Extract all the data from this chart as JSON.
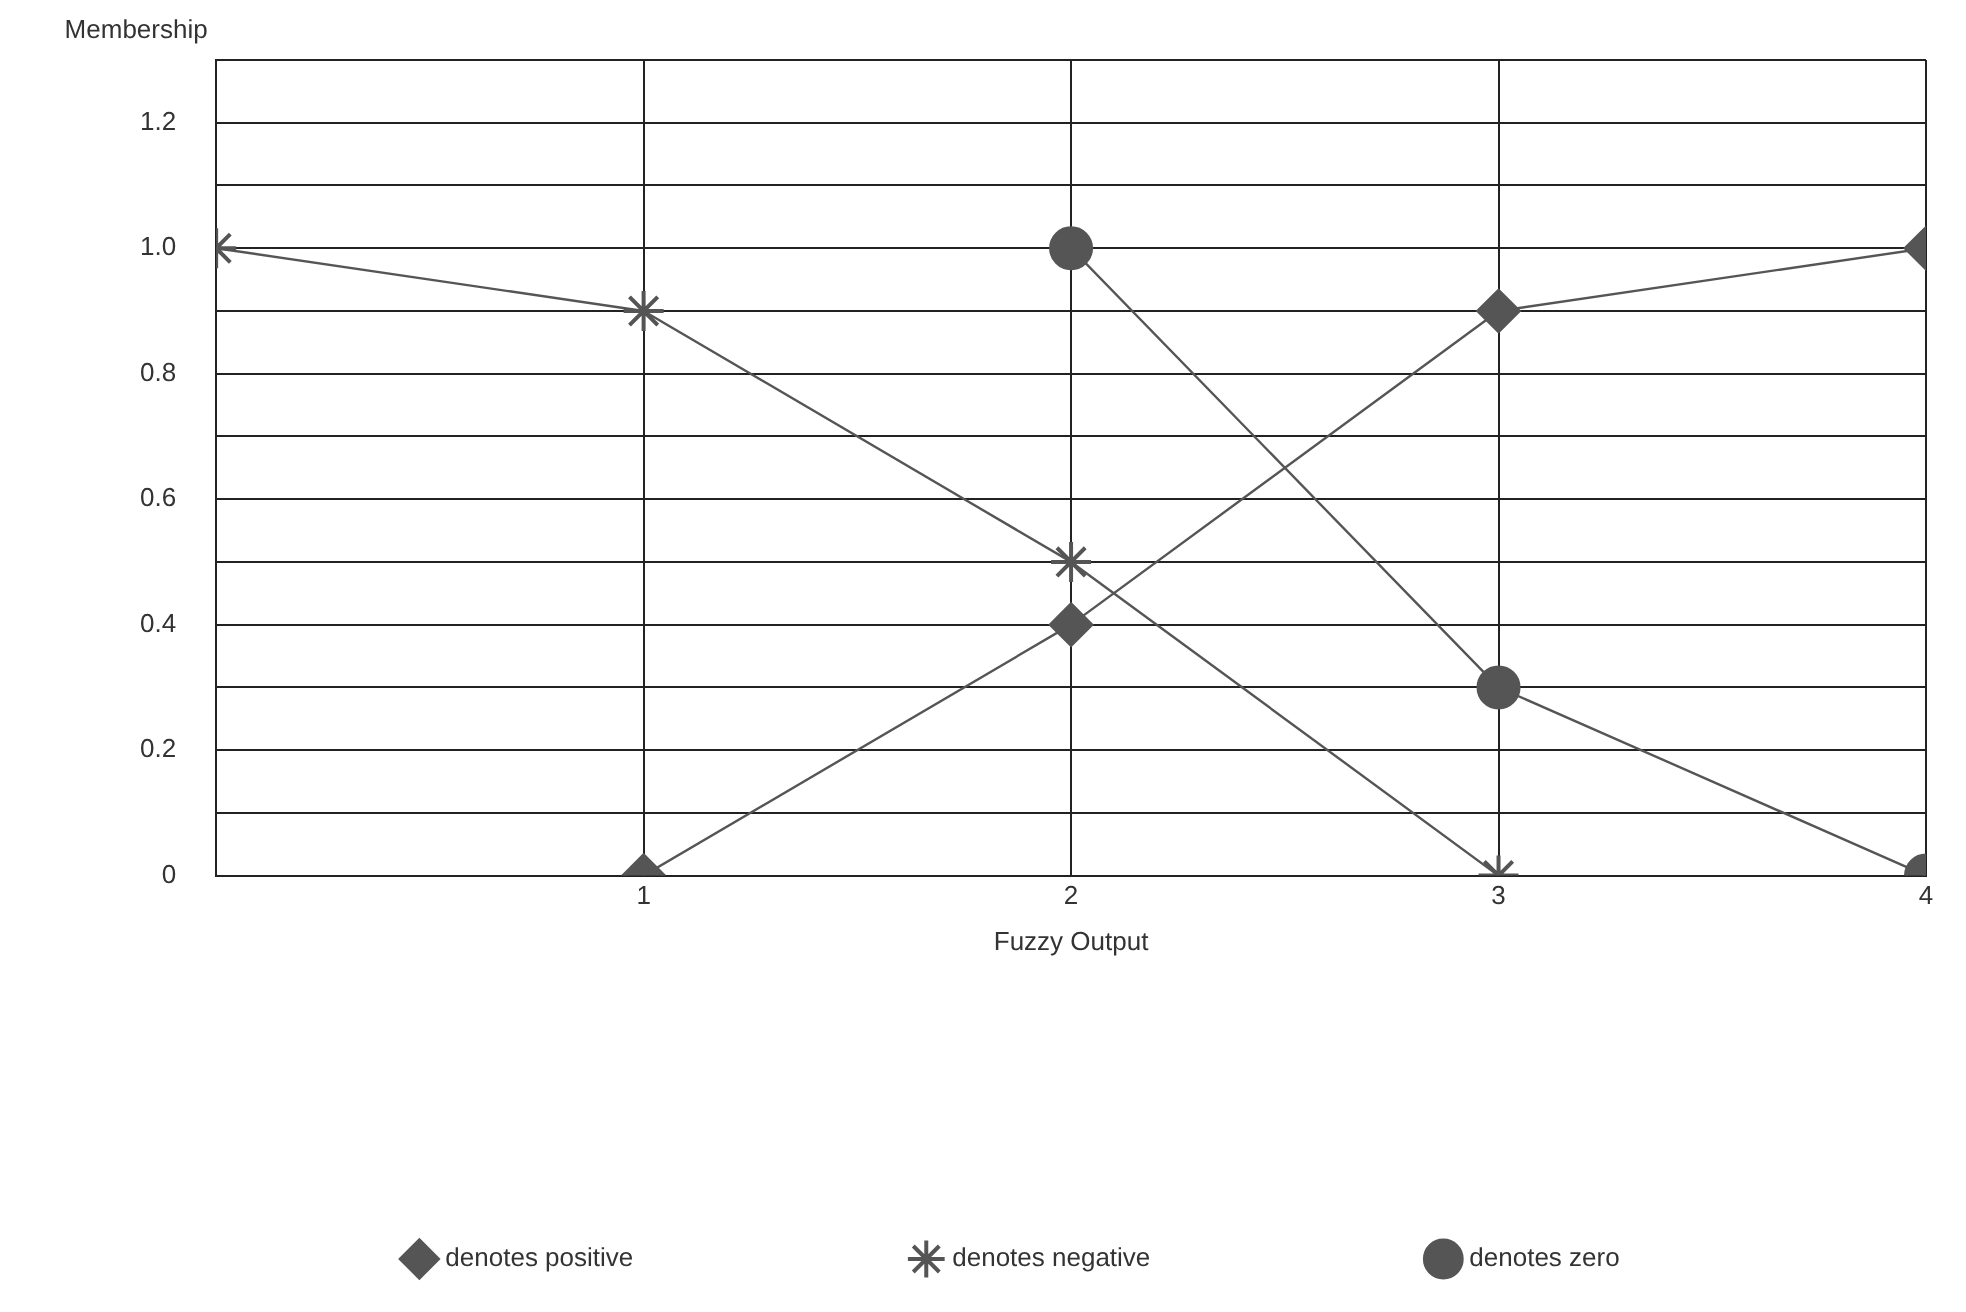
{
  "chart_data": {
    "type": "line",
    "ylabel": "Membership",
    "xlabel": "Fuzzy Output",
    "xlim": [
      0,
      4
    ],
    "xticks": [
      {
        "value": 0,
        "label": null
      },
      1,
      2,
      3,
      4
    ],
    "ylim": [
      0,
      1.3
    ],
    "yticks": [
      0,
      {
        "value": 0.1,
        "label": null
      },
      0.2,
      {
        "value": 0.3,
        "label": null
      },
      0.4,
      {
        "value": 0.5,
        "label": null
      },
      0.6,
      {
        "value": 0.7,
        "label": null
      },
      0.8,
      {
        "value": 0.9,
        "label": null
      },
      {
        "value": 1,
        "label": "1.0"
      },
      {
        "value": 1.1,
        "label": null
      },
      1.2,
      {
        "value": 1.3,
        "label": null
      }
    ],
    "grid": true,
    "legend": "bottom",
    "line_style": "solid",
    "series": [
      {
        "name": "denotes positive",
        "color": "#555555",
        "marker": "diamond",
        "x": [
          1,
          2,
          3,
          4
        ],
        "values": [
          0,
          0.4,
          0.9,
          1.0
        ]
      },
      {
        "name": "denotes negative",
        "color": "#555555",
        "marker": "cross",
        "x": [
          0,
          1,
          2,
          3
        ],
        "values": [
          1.0,
          0.9,
          0.5,
          0
        ]
      },
      {
        "name": "denotes zero",
        "color": "#555555",
        "marker": "circle",
        "x": [
          2,
          3,
          4
        ],
        "values": [
          1.0,
          0.3,
          0
        ]
      }
    ]
  }
}
